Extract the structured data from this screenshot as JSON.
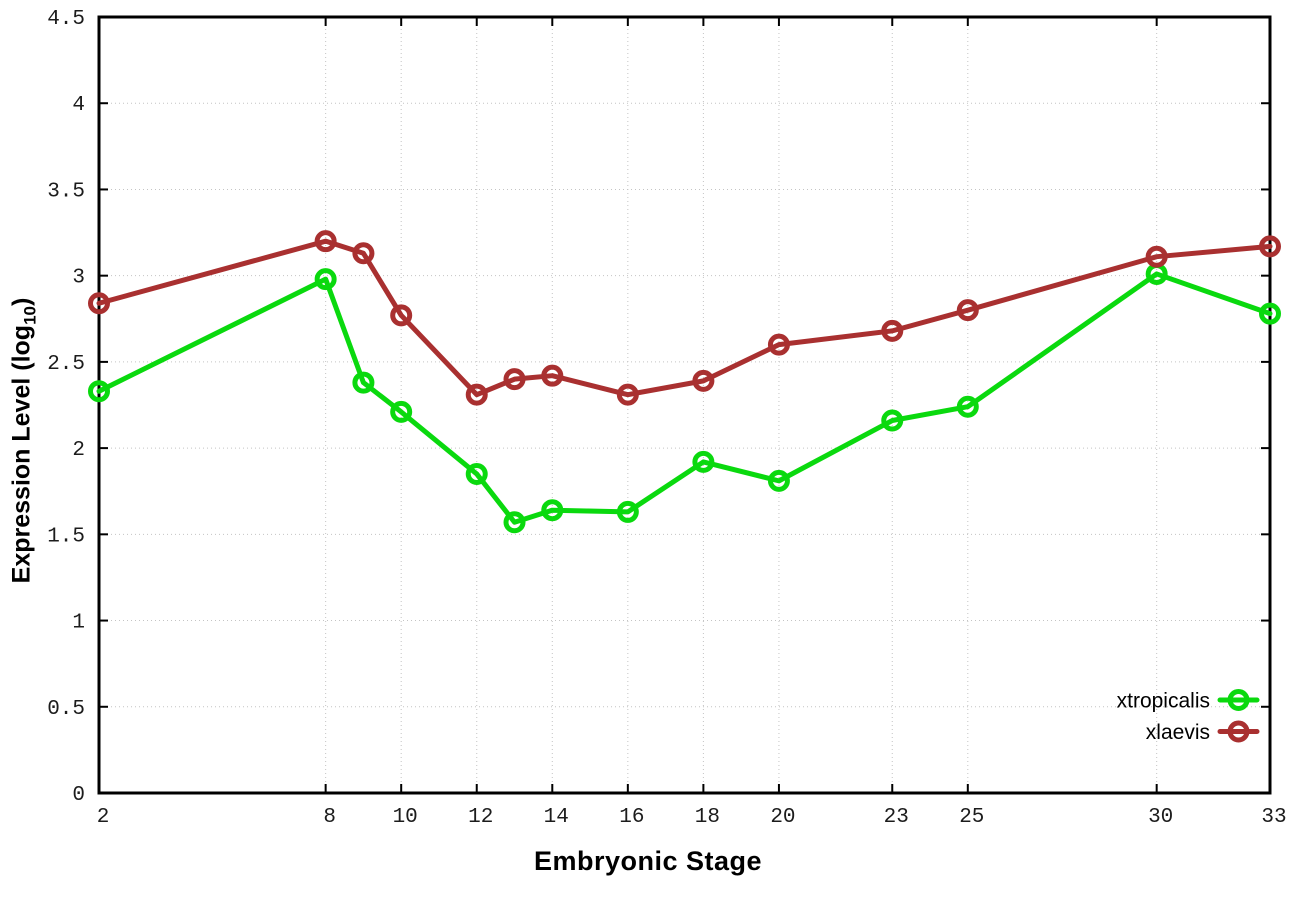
{
  "chart_data": {
    "type": "line",
    "title": "",
    "xlabel": "Embryonic Stage",
    "ylabel": "Expression Level (log10)",
    "ylabel_parts": {
      "main": "Expression Level (log",
      "sub": "10",
      "end": ")"
    },
    "xlim": [
      2,
      33
    ],
    "ylim": [
      0,
      4.5
    ],
    "grid": true,
    "legend_position": "bottom-right-inside",
    "x_ticks": [
      2,
      8,
      10,
      12,
      14,
      16,
      18,
      20,
      23,
      25,
      30,
      33
    ],
    "x_tick_labels": [
      "2",
      "8",
      "10",
      "12",
      "14",
      "16",
      "18",
      "20",
      "23",
      "25",
      "30",
      "33"
    ],
    "y_ticks": [
      0,
      0.5,
      1,
      1.5,
      2,
      2.5,
      3,
      3.5,
      4,
      4.5
    ],
    "y_tick_labels": [
      "0",
      "0.5",
      "1",
      "1.5",
      "2",
      "2.5",
      "3",
      "3.5",
      "4",
      "4.5"
    ],
    "x": [
      2,
      8,
      9,
      10,
      12,
      13,
      14,
      16,
      18,
      20,
      23,
      25,
      30,
      33
    ],
    "series": [
      {
        "name": "xtropicalis",
        "color": "#0ad90e",
        "values": [
          2.33,
          2.98,
          2.38,
          2.21,
          1.85,
          1.57,
          1.64,
          1.63,
          1.92,
          1.81,
          2.16,
          2.24,
          3.01,
          2.78
        ]
      },
      {
        "name": "xlaevis",
        "color": "#a93030",
        "values": [
          2.84,
          3.2,
          3.13,
          2.77,
          2.31,
          2.4,
          2.42,
          2.31,
          2.39,
          2.6,
          2.68,
          2.8,
          3.11,
          3.17
        ]
      }
    ]
  },
  "style_colors": {
    "border": "#000000",
    "grid": "#c4c4c4",
    "tick_text": "#1c1c1c",
    "legend_text": "#000000"
  }
}
